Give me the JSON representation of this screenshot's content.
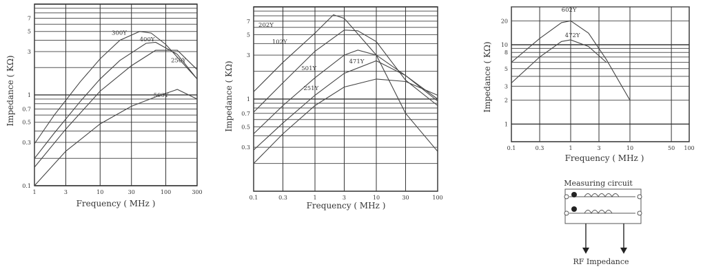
{
  "chart_data": [
    {
      "type": "line",
      "xlabel": "Frequency ( MHz )",
      "ylabel": "Impedance ( KΩ)",
      "x_scale": "log",
      "y_scale": "log",
      "xlim": [
        1,
        300
      ],
      "ylim": [
        0.1,
        10
      ],
      "xticks": [
        {
          "v": 1,
          "t": "1"
        },
        {
          "v": 3,
          "t": "3"
        },
        {
          "v": 10,
          "t": "10"
        },
        {
          "v": 30,
          "t": "30"
        },
        {
          "v": 100,
          "t": "100"
        },
        {
          "v": 300,
          "t": "300"
        }
      ],
      "yticks": [
        {
          "v": 0.1,
          "t": "0.1"
        },
        {
          "v": 0.3,
          "t": "0.3"
        },
        {
          "v": 0.5,
          "t": "0.5"
        },
        {
          "v": 0.7,
          "t": "0.7"
        },
        {
          "v": 1,
          "t": "1"
        },
        {
          "v": 3,
          "t": "3"
        },
        {
          "v": 5,
          "t": "5"
        },
        {
          "v": 7,
          "t": "7"
        }
      ],
      "grid_y": [
        0.1,
        0.2,
        0.3,
        0.4,
        0.5,
        0.6,
        0.7,
        0.8,
        0.9,
        1,
        2,
        3,
        4,
        5,
        6,
        7,
        8,
        9,
        10
      ],
      "series": [
        {
          "name": "300Y",
          "label_at": [
            15,
            4.6
          ],
          "points": [
            [
              1,
              0.29
            ],
            [
              2,
              0.6
            ],
            [
              5,
              1.4
            ],
            [
              10,
              2.5
            ],
            [
              20,
              4.0
            ],
            [
              40,
              5.0
            ],
            [
              60,
              4.8
            ],
            [
              100,
              3.6
            ],
            [
              300,
              1.5
            ]
          ]
        },
        {
          "name": "400Y",
          "label_at": [
            40,
            3.9
          ],
          "points": [
            [
              1,
              0.2
            ],
            [
              2,
              0.38
            ],
            [
              5,
              0.85
            ],
            [
              10,
              1.5
            ],
            [
              20,
              2.4
            ],
            [
              50,
              3.7
            ],
            [
              70,
              3.8
            ],
            [
              150,
              2.8
            ],
            [
              300,
              1.5
            ]
          ]
        },
        {
          "name": "250Y",
          "label_at": [
            120,
            2.3
          ],
          "points": [
            [
              1,
              0.16
            ],
            [
              3,
              0.42
            ],
            [
              10,
              1.1
            ],
            [
              30,
              2.1
            ],
            [
              70,
              3.1
            ],
            [
              150,
              3.1
            ],
            [
              300,
              1.9
            ]
          ]
        },
        {
          "name": "500Y",
          "label_at": [
            65,
            0.95
          ],
          "points": [
            [
              1,
              0.1
            ],
            [
              3,
              0.24
            ],
            [
              10,
              0.48
            ],
            [
              30,
              0.75
            ],
            [
              70,
              0.95
            ],
            [
              150,
              1.15
            ],
            [
              300,
              0.9
            ]
          ]
        }
      ]
    },
    {
      "type": "line",
      "xlabel": "Frequency ( MHz )",
      "ylabel": "Impedance ( KΩ)",
      "x_scale": "log",
      "y_scale": "log",
      "xlim": [
        0.1,
        100
      ],
      "ylim": [
        0.1,
        10
      ],
      "xticks": [
        {
          "v": 0.1,
          "t": "0.1"
        },
        {
          "v": 0.3,
          "t": "0.3"
        },
        {
          "v": 1,
          "t": "1"
        },
        {
          "v": 3,
          "t": "3"
        },
        {
          "v": 10,
          "t": "10"
        },
        {
          "v": 30,
          "t": "30"
        },
        {
          "v": 100,
          "t": "100"
        }
      ],
      "yticks": [
        {
          "v": 0.3,
          "t": "0.3"
        },
        {
          "v": 0.5,
          "t": "0.5"
        },
        {
          "v": 0.7,
          "t": "0.7"
        },
        {
          "v": 1,
          "t": "1"
        },
        {
          "v": 3,
          "t": "3"
        },
        {
          "v": 5,
          "t": "5"
        },
        {
          "v": 7,
          "t": "7"
        }
      ],
      "grid_y": [
        0.2,
        0.3,
        0.4,
        0.5,
        0.6,
        0.7,
        0.8,
        0.9,
        1,
        2,
        3,
        4,
        5,
        6,
        7,
        8,
        9,
        10
      ],
      "series": [
        {
          "name": "202Y",
          "label_at": [
            0.12,
            6.1
          ],
          "points": [
            [
              0.1,
              1.2
            ],
            [
              0.3,
              2.5
            ],
            [
              1,
              5.2
            ],
            [
              2,
              8.2
            ],
            [
              3,
              7.5
            ],
            [
              10,
              3.0
            ],
            [
              30,
              0.7
            ],
            [
              100,
              0.27
            ]
          ]
        },
        {
          "name": "102Y",
          "label_at": [
            0.2,
            4.0
          ],
          "points": [
            [
              0.1,
              0.72
            ],
            [
              0.3,
              1.5
            ],
            [
              1,
              3.3
            ],
            [
              3,
              5.6
            ],
            [
              5,
              5.5
            ],
            [
              10,
              4.2
            ],
            [
              30,
              1.6
            ],
            [
              100,
              0.85
            ]
          ]
        },
        {
          "name": "501Y",
          "label_at": [
            0.6,
            2.05
          ],
          "points": [
            [
              0.1,
              0.42
            ],
            [
              0.3,
              0.85
            ],
            [
              1,
              1.7
            ],
            [
              3,
              3.0
            ],
            [
              5,
              3.4
            ],
            [
              10,
              3.0
            ],
            [
              30,
              1.8
            ],
            [
              100,
              0.95
            ]
          ]
        },
        {
          "name": "471Y",
          "label_at": [
            3.6,
            2.45
          ],
          "points": [
            [
              0.1,
              0.28
            ],
            [
              0.3,
              0.55
            ],
            [
              1,
              1.1
            ],
            [
              3,
              1.9
            ],
            [
              10,
              2.6
            ],
            [
              30,
              1.8
            ],
            [
              100,
              1.0
            ]
          ]
        },
        {
          "name": "251Y",
          "label_at": [
            0.65,
            1.25
          ],
          "points": [
            [
              0.1,
              0.2
            ],
            [
              0.3,
              0.42
            ],
            [
              1,
              0.85
            ],
            [
              3,
              1.35
            ],
            [
              10,
              1.65
            ],
            [
              30,
              1.55
            ],
            [
              100,
              1.1
            ]
          ]
        }
      ]
    },
    {
      "type": "line",
      "xlabel": "Frequency ( MHz )",
      "ylabel": "Impedance ( KΩ)",
      "x_scale": "log",
      "y_scale": "log",
      "xlim": [
        0.1,
        100
      ],
      "ylim": [
        0.6,
        30
      ],
      "xticks": [
        {
          "v": 0.1,
          "t": "0.1"
        },
        {
          "v": 0.3,
          "t": "0.3"
        },
        {
          "v": 1,
          "t": "1"
        },
        {
          "v": 3,
          "t": "3"
        },
        {
          "v": 10,
          "t": "10"
        },
        {
          "v": 50,
          "t": "50"
        },
        {
          "v": 100,
          "t": "100"
        }
      ],
      "yticks": [
        {
          "v": 1,
          "t": "1"
        },
        {
          "v": 2,
          "t": "2"
        },
        {
          "v": 3,
          "t": "3"
        },
        {
          "v": 5,
          "t": "5"
        },
        {
          "v": 8,
          "t": "8"
        },
        {
          "v": 10,
          "t": "10"
        },
        {
          "v": 20,
          "t": "20"
        }
      ],
      "grid_y": [
        1,
        2,
        3,
        4,
        5,
        6,
        7,
        8,
        9,
        10,
        20,
        30
      ],
      "series": [
        {
          "name": "602Y",
          "label_at": [
            0.7,
            26
          ],
          "points": [
            [
              0.1,
              6
            ],
            [
              0.3,
              12
            ],
            [
              0.7,
              19
            ],
            [
              1,
              20
            ],
            [
              2,
              14
            ],
            [
              4,
              6.5
            ],
            [
              10,
              2
            ]
          ]
        },
        {
          "name": "472Y",
          "label_at": [
            0.8,
            12.5
          ],
          "points": [
            [
              0.1,
              3.3
            ],
            [
              0.3,
              7
            ],
            [
              0.7,
              11
            ],
            [
              1,
              11.5
            ],
            [
              2,
              9.5
            ],
            [
              4,
              6
            ]
          ]
        }
      ]
    }
  ],
  "circuit": {
    "title": "Measuring circuit",
    "output_label": "RF Impedance"
  }
}
